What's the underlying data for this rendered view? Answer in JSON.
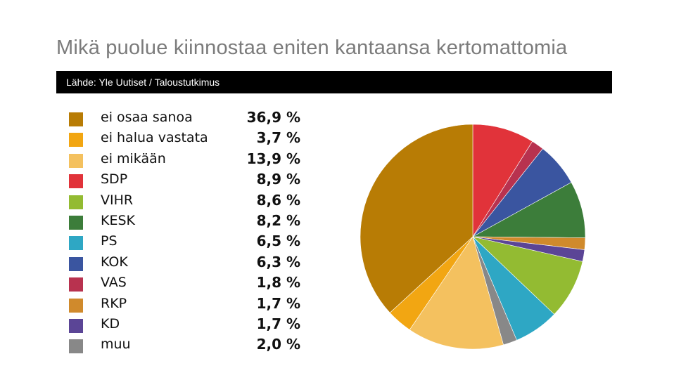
{
  "title": "Mikä puolue kiinnostaa eniten kantaansa kertomattomia",
  "source": "Lähde: Yle Uutiset / Taloustutkimus",
  "chart_data": {
    "type": "pie",
    "title": "Mikä puolue kiinnostaa eniten kantaansa kertomattomia",
    "legend_placement": "left",
    "series": [
      {
        "label": "ei osaa sanoa",
        "value": 36.9,
        "display": "36,9 %",
        "color": "#b87c05"
      },
      {
        "label": "ei halua vastata",
        "value": 3.7,
        "display": "3,7 %",
        "color": "#f2a612"
      },
      {
        "label": "ei mikään",
        "value": 13.9,
        "display": "13,9 %",
        "color": "#f4c15f"
      },
      {
        "label": "SDP",
        "value": 8.9,
        "display": "8,9 %",
        "color": "#e1333a"
      },
      {
        "label": "VIHR",
        "value": 8.6,
        "display": "8,6 %",
        "color": "#93bb32"
      },
      {
        "label": "KESK",
        "value": 8.2,
        "display": "8,2 %",
        "color": "#3c7d3a"
      },
      {
        "label": "PS",
        "value": 6.5,
        "display": "6,5 %",
        "color": "#2ea7c4"
      },
      {
        "label": "KOK",
        "value": 6.3,
        "display": "6,3 %",
        "color": "#3a55a0"
      },
      {
        "label": "VAS",
        "value": 1.8,
        "display": "1,8 %",
        "color": "#b8324f"
      },
      {
        "label": "RKP",
        "value": 1.7,
        "display": "1,7 %",
        "color": "#d08a2c"
      },
      {
        "label": "KD",
        "value": 1.7,
        "display": "1,7 %",
        "color": "#5b4596"
      },
      {
        "label": "muu",
        "value": 2.0,
        "display": "2,0 %",
        "color": "#888888"
      }
    ],
    "slice_order_clockwise_from_top": [
      "SDP",
      "VAS",
      "KOK",
      "KESK",
      "RKP",
      "KD",
      "VIHR",
      "PS",
      "muu",
      "ei mikään",
      "ei halua vastata",
      "ei osaa sanoa"
    ]
  }
}
